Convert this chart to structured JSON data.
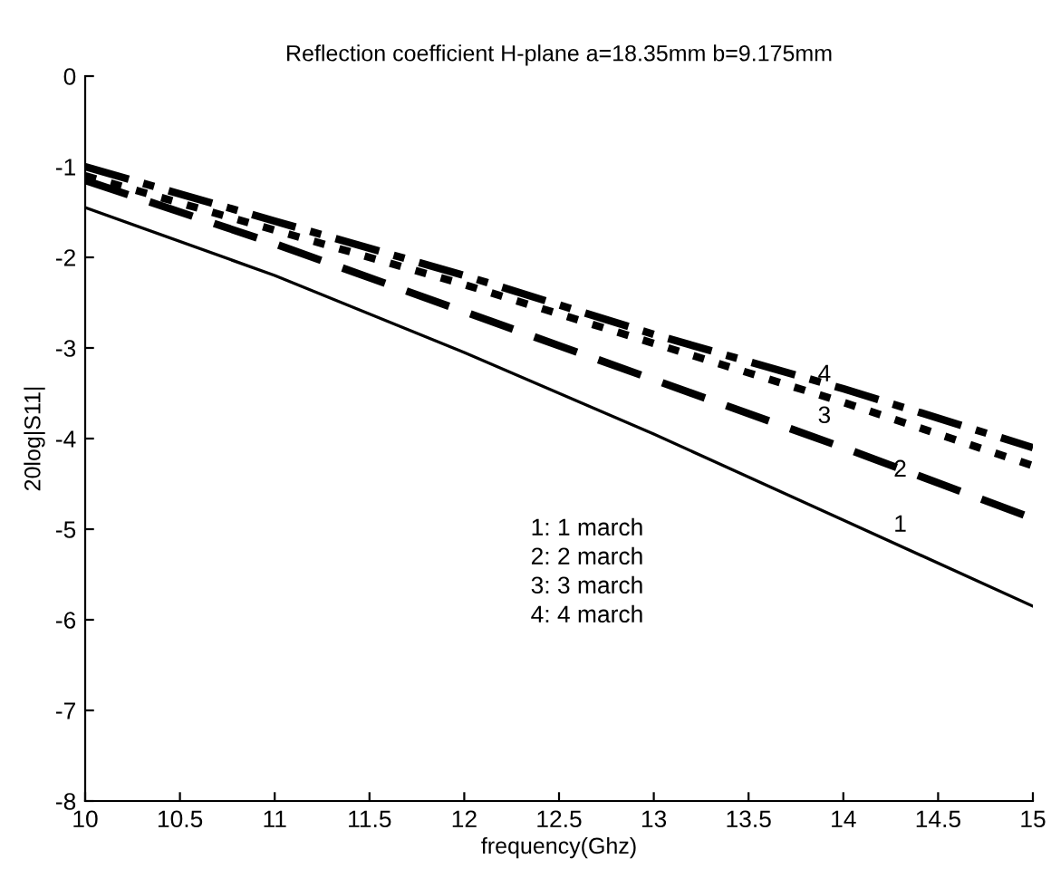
{
  "chart_data": {
    "type": "line",
    "title": "Reflection coefficient H-plane a=18.35mm b=9.175mm",
    "xlabel": "frequency(Ghz)",
    "ylabel": "20log|S11|",
    "x": [
      10,
      11,
      12,
      13,
      14,
      15
    ],
    "series": [
      {
        "color": "#000000",
        "line_style": "solid",
        "values": [
          -1.45,
          -2.2,
          -3.05,
          -3.95,
          -4.9,
          -5.85
        ]
      },
      {
        "color": "#000000",
        "line_style": "dashed",
        "values": [
          -1.15,
          -1.85,
          -2.6,
          -3.35,
          -4.1,
          -4.88
        ]
      },
      {
        "color": "#000000",
        "line_style": "dotted",
        "values": [
          -1.1,
          -1.7,
          -2.3,
          -2.95,
          -3.6,
          -4.3
        ]
      },
      {
        "color": "#000000",
        "line_style": "dashdot",
        "values": [
          -1.0,
          -1.6,
          -2.2,
          -2.85,
          -3.45,
          -4.1
        ]
      }
    ],
    "annotations": [
      "4",
      "3",
      "2",
      "1",
      "1: 1 march",
      "2: 2 march",
      "3: 3 march",
      "4: 4 march"
    ],
    "xlim": [
      10,
      15
    ],
    "ylim": [
      -8,
      0
    ],
    "xticks": [
      10,
      10.5,
      11,
      11.5,
      12,
      12.5,
      13,
      13.5,
      14,
      14.5,
      15
    ],
    "yticks": [
      -8,
      -7,
      -6,
      -5,
      -4,
      -3,
      -2,
      -1,
      0
    ],
    "grid": false,
    "legend": false,
    "marker": "none"
  }
}
